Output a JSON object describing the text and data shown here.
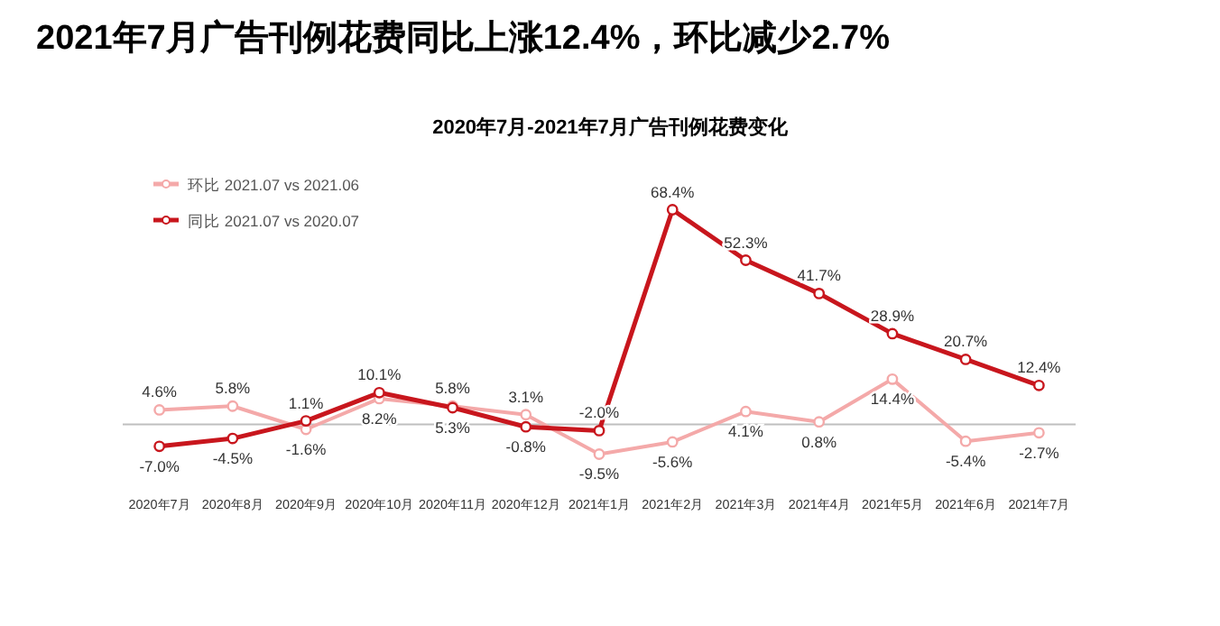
{
  "chart_data": {
    "type": "line",
    "title": "2021年7月广告刊例花费同比上涨12.4%，环比减少2.7%",
    "subtitle": "2020年7月-2021年7月广告刊例花费变化",
    "categories": [
      "2020年7月",
      "2020年8月",
      "2020年9月",
      "2020年10月",
      "2020年11月",
      "2020年12月",
      "2021年1月",
      "2021年2月",
      "2021年3月",
      "2021年4月",
      "2021年5月",
      "2021年6月",
      "2021年7月"
    ],
    "series": [
      {
        "name": "环比 2021.07 vs 2021.06",
        "color": "#f4a9a9",
        "values": [
          4.6,
          5.8,
          -1.6,
          8.2,
          5.8,
          3.1,
          -9.5,
          -5.6,
          4.1,
          0.8,
          14.4,
          -5.4,
          -2.7
        ],
        "value_labels": [
          "4.6%",
          "5.8%",
          "-1.6%",
          "8.2%",
          "5.8%",
          "3.1%",
          "-9.5%",
          "-5.6%",
          "4.1%",
          "0.8%",
          "14.4%",
          "-5.4%",
          "-2.7%"
        ]
      },
      {
        "name": "同比 2021.07 vs 2020.07",
        "color": "#c8161d",
        "values": [
          -7.0,
          -4.5,
          1.1,
          10.1,
          5.3,
          -0.8,
          -2.0,
          68.4,
          52.3,
          41.7,
          28.9,
          20.7,
          12.4
        ],
        "value_labels": [
          "-7.0%",
          "-4.5%",
          "1.1%",
          "10.1%",
          "5.3%",
          "-0.8%",
          "-2.0%",
          "68.4%",
          "52.3%",
          "41.7%",
          "28.9%",
          "20.7%",
          "12.4%"
        ]
      }
    ],
    "tick_labels": "x",
    "legend": "top left",
    "marker": "circle"
  }
}
